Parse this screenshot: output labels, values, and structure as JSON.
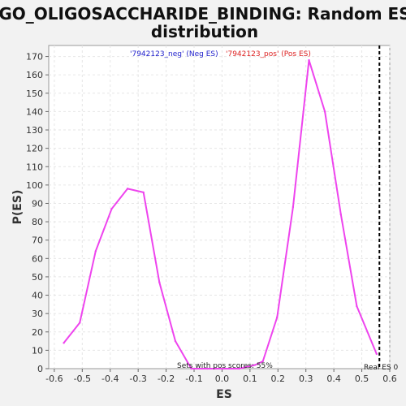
{
  "chart_data": {
    "type": "line",
    "title_lines": [
      "GO_OLIGOSACCHARIDE_BINDING: Random ES",
      "distribution"
    ],
    "xlabel": "ES",
    "ylabel": "P(ES)",
    "xlim": [
      -0.62,
      0.6
    ],
    "ylim": [
      0,
      176
    ],
    "x_ticks": [
      -0.6,
      -0.5,
      -0.4,
      -0.3,
      -0.2,
      -0.1,
      0.0,
      0.1,
      0.2,
      0.3,
      0.4,
      0.5,
      0.6
    ],
    "y_ticks": [
      0,
      10,
      20,
      30,
      40,
      50,
      60,
      70,
      80,
      90,
      100,
      110,
      120,
      130,
      140,
      150,
      160,
      170
    ],
    "grid": true,
    "legend": {
      "placement": "top-center",
      "entries": [
        {
          "label": "'7942123_neg' (Neg ES)",
          "color": "#2222cc"
        },
        {
          "label": "'7942123_pos' (Pos ES)",
          "color": "#dd2222"
        }
      ]
    },
    "series": [
      {
        "color": "#ee44ee",
        "x": [
          -0.566,
          -0.509,
          -0.452,
          -0.395,
          -0.338,
          -0.281,
          -0.224,
          -0.167,
          -0.11,
          -0.053,
          0.004,
          0.061,
          0.118,
          0.146,
          0.197,
          0.254,
          0.311,
          0.368,
          0.425,
          0.482,
          0.553
        ],
        "y": [
          14,
          25,
          64,
          87,
          98,
          96,
          47,
          15,
          0,
          0,
          0,
          0,
          2,
          4,
          28,
          88,
          168,
          140,
          84,
          34,
          8
        ]
      }
    ],
    "real_es": {
      "x": 0.563,
      "label": "Real ES 0"
    },
    "annotation": "Sets with pos scores: 55%"
  }
}
